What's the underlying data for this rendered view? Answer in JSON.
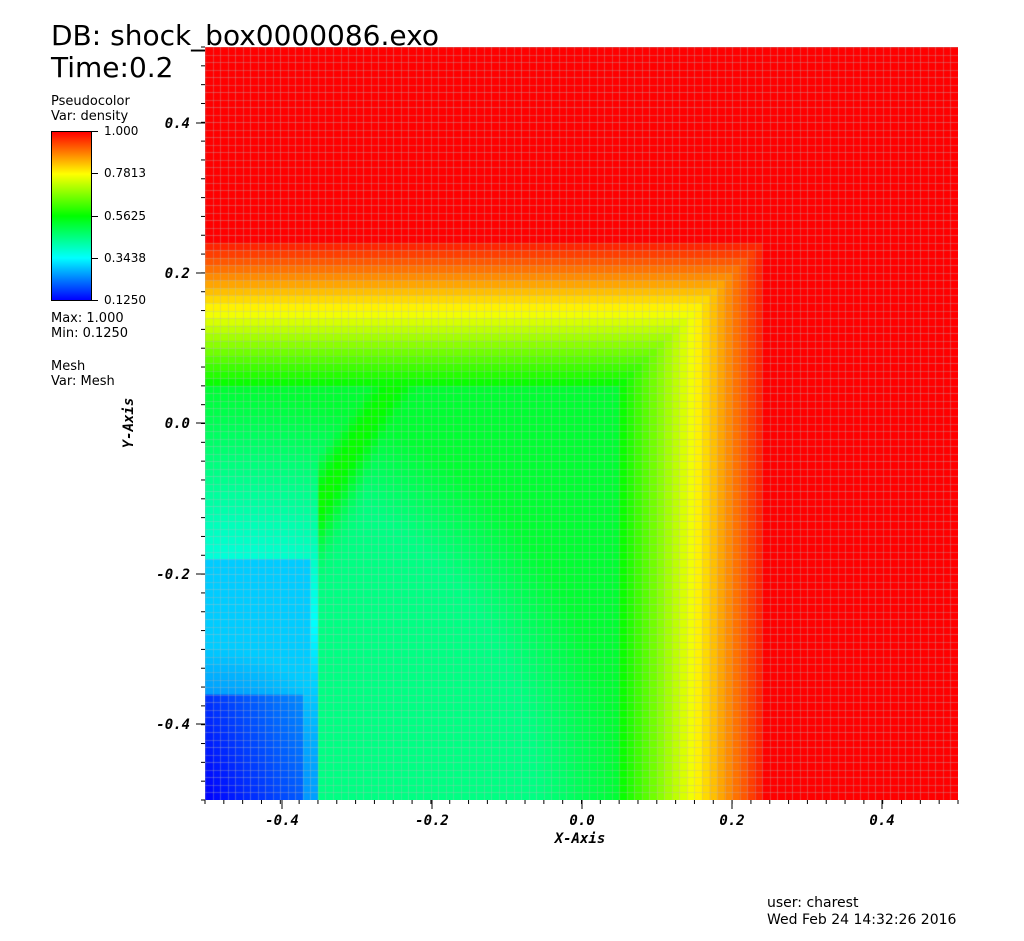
{
  "header": {
    "db_label": "DB: shock_box0000086.exo",
    "time_label": "Time:0.2"
  },
  "legend": {
    "plot_type": "Pseudocolor",
    "variable": "Var: density",
    "ticks": [
      "1.000",
      "0.7813",
      "0.5625",
      "0.3438",
      "0.1250"
    ],
    "max_label": "Max:  1.000",
    "min_label": "Min:  0.1250",
    "colormap": [
      "#0000ff",
      "#00ffff",
      "#00ff00",
      "#ffff00",
      "#ff0000"
    ]
  },
  "mesh_legend": {
    "plot_type": "Mesh",
    "variable": "Var: Mesh",
    "mesh_line_color": "#b4b4b4"
  },
  "axes": {
    "x_title": "X-Axis",
    "y_title": "Y-Axis",
    "x_ticks": [
      "-0.4",
      "-0.2",
      "0.0",
      "0.2",
      "0.4"
    ],
    "y_ticks": [
      "0.4",
      "0.2",
      "0.0",
      "-0.2",
      "-0.4"
    ]
  },
  "footer": {
    "user": "user: charest",
    "timestamp": "Wed Feb 24 14:32:26 2016"
  },
  "chart_data": {
    "type": "heatmap",
    "variable": "density",
    "xlabel": "X-Axis",
    "ylabel": "Y-Axis",
    "xlim": [
      -0.5,
      0.5
    ],
    "ylim": [
      -0.5,
      0.5
    ],
    "value_range": [
      0.125,
      1.0
    ],
    "grid_cells": 100
  }
}
